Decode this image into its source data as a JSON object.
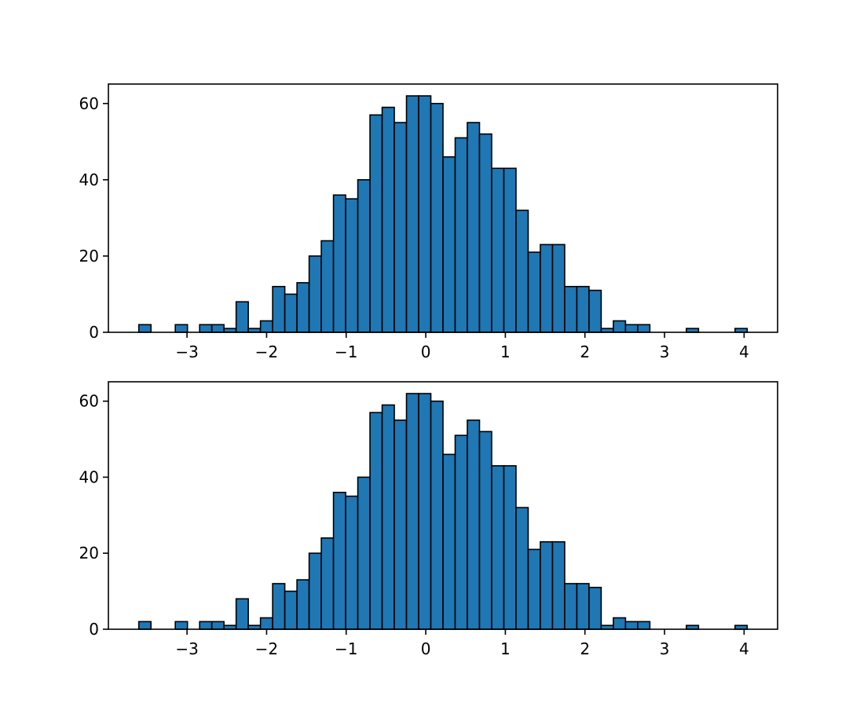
{
  "chart_data": [
    {
      "type": "histogram",
      "color": "#1f77b4",
      "edgecolor": "#000000",
      "bins": [
        -3.606,
        -3.4531,
        -3.3002,
        -3.1473,
        -2.9944,
        -2.8415,
        -2.6886,
        -2.5357,
        -2.3828,
        -2.2299,
        -2.077,
        -1.9241,
        -1.7712,
        -1.6183,
        -1.4654,
        -1.3125,
        -1.1596,
        -1.0067,
        -0.8538,
        -0.7009,
        -0.548,
        -0.3951,
        -0.2422,
        -0.0893,
        0.0636,
        0.2165,
        0.3694,
        0.5223,
        0.6752,
        0.8281,
        0.981,
        1.1339,
        1.2868,
        1.4397,
        1.5926,
        1.7455,
        1.8984,
        2.0513,
        2.2042,
        2.3571,
        2.51,
        2.6629,
        2.8158,
        2.9687,
        3.1216,
        3.2745,
        3.4274,
        3.5803,
        3.7332,
        3.8861,
        4.039
      ],
      "values": [
        2,
        0,
        0,
        2,
        0,
        2,
        2,
        1,
        8,
        1,
        3,
        12,
        10,
        13,
        20,
        24,
        36,
        35,
        40,
        57,
        59,
        55,
        62,
        62,
        60,
        46,
        51,
        55,
        52,
        43,
        43,
        32,
        21,
        23,
        23,
        12,
        12,
        11,
        1,
        3,
        2,
        2,
        0,
        0,
        0,
        1,
        0,
        0,
        0,
        1
      ],
      "xlim": [
        -3.988,
        4.421
      ],
      "ylim": [
        0,
        65.1
      ],
      "xticks": [
        {
          "value": -3,
          "label": "−3"
        },
        {
          "value": -2,
          "label": "−2"
        },
        {
          "value": -1,
          "label": "−1"
        },
        0,
        1,
        2,
        3,
        4
      ],
      "yticks": [
        0,
        20,
        40,
        60
      ]
    },
    {
      "type": "histogram",
      "color": "#1f77b4",
      "edgecolor": "#000000",
      "bins": [
        -3.606,
        -3.4531,
        -3.3002,
        -3.1473,
        -2.9944,
        -2.8415,
        -2.6886,
        -2.5357,
        -2.3828,
        -2.2299,
        -2.077,
        -1.9241,
        -1.7712,
        -1.6183,
        -1.4654,
        -1.3125,
        -1.1596,
        -1.0067,
        -0.8538,
        -0.7009,
        -0.548,
        -0.3951,
        -0.2422,
        -0.0893,
        0.0636,
        0.2165,
        0.3694,
        0.5223,
        0.6752,
        0.8281,
        0.981,
        1.1339,
        1.2868,
        1.4397,
        1.5926,
        1.7455,
        1.8984,
        2.0513,
        2.2042,
        2.3571,
        2.51,
        2.6629,
        2.8158,
        2.9687,
        3.1216,
        3.2745,
        3.4274,
        3.5803,
        3.7332,
        3.8861,
        4.039
      ],
      "values": [
        2,
        0,
        0,
        2,
        0,
        2,
        2,
        1,
        8,
        1,
        3,
        12,
        10,
        13,
        20,
        24,
        36,
        35,
        40,
        57,
        59,
        55,
        62,
        62,
        60,
        46,
        51,
        55,
        52,
        43,
        43,
        32,
        21,
        23,
        23,
        12,
        12,
        11,
        1,
        3,
        2,
        2,
        0,
        0,
        0,
        1,
        0,
        0,
        0,
        1
      ],
      "xlim": [
        -3.988,
        4.421
      ],
      "ylim": [
        0,
        65.1
      ],
      "xticks": [
        {
          "value": -3,
          "label": "−3"
        },
        {
          "value": -2,
          "label": "−2"
        },
        {
          "value": -1,
          "label": "−1"
        },
        0,
        1,
        2,
        3,
        4
      ],
      "yticks": [
        0,
        20,
        40,
        60
      ]
    }
  ]
}
